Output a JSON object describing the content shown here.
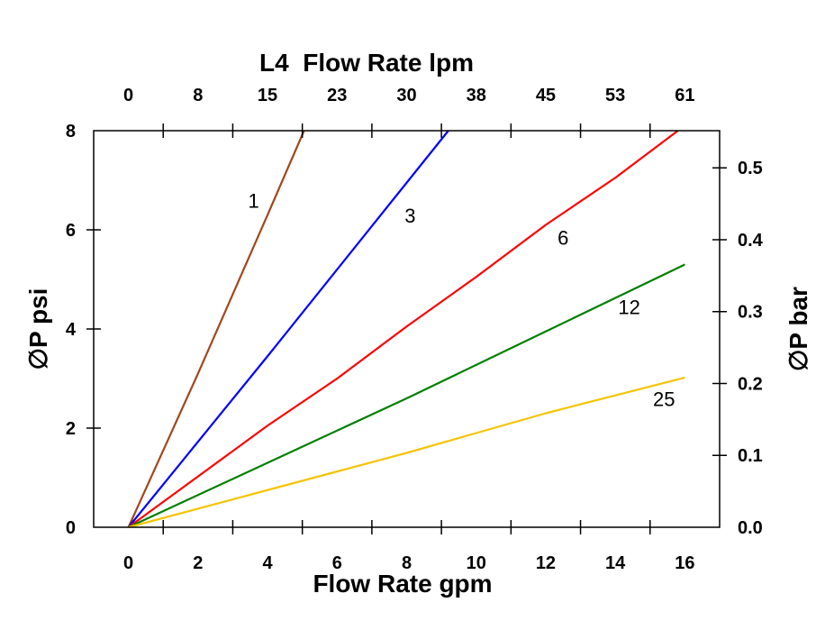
{
  "chart_data": {
    "type": "line",
    "title": "L4  Flow Rate lpm",
    "xlabel": "Flow Rate gpm",
    "ylabel": "∅P psi",
    "y2label": "∅P bar",
    "xlim": [
      -1,
      17
    ],
    "ylim": [
      0,
      8
    ],
    "y2lim": [
      0,
      0.5517
    ],
    "grid": false,
    "x_ticks": [
      0,
      2,
      4,
      6,
      8,
      10,
      12,
      14,
      16
    ],
    "x_tick_labels": [
      "0",
      "2",
      "4",
      "6",
      "8",
      "10",
      "12",
      "14",
      "16"
    ],
    "x2_tick_labels": [
      "0",
      "8",
      "15",
      "23",
      "30",
      "38",
      "45",
      "53",
      "61"
    ],
    "y_ticks": [
      0,
      2,
      4,
      6,
      8
    ],
    "y_tick_labels": [
      "0",
      "2",
      "4",
      "6",
      "8"
    ],
    "y2_ticks": [
      0.0,
      0.1,
      0.2,
      0.3,
      0.4,
      0.5
    ],
    "y2_tick_labels": [
      "0.0",
      "0.1",
      "0.2",
      "0.3",
      "0.4",
      "0.5"
    ],
    "series": [
      {
        "name": "1",
        "color": "#a0481c",
        "x": [
          0,
          2,
          4,
          5.05
        ],
        "y": [
          0,
          3.1,
          6.3,
          8
        ]
      },
      {
        "name": "3",
        "color": "#0000ff",
        "x": [
          0,
          4,
          8,
          9.2
        ],
        "y": [
          0,
          3.45,
          6.95,
          8
        ]
      },
      {
        "name": "6",
        "color": "#ff0000",
        "x": [
          0,
          4,
          6,
          8,
          10,
          12,
          14,
          15.8
        ],
        "y": [
          0,
          2.05,
          3.0,
          4.05,
          5.05,
          6.1,
          7.05,
          8
        ]
      },
      {
        "name": "12",
        "color": "#008000",
        "x": [
          0,
          4,
          8,
          12,
          16
        ],
        "y": [
          0,
          1.3,
          2.6,
          3.95,
          5.3
        ]
      },
      {
        "name": "25",
        "color": "#f5c400",
        "x": [
          0,
          4,
          8,
          10,
          12,
          16
        ],
        "y": [
          0,
          0.75,
          1.5,
          1.9,
          2.3,
          3.02
        ]
      }
    ],
    "annotations": [
      {
        "text": "1",
        "x": 3.6,
        "y": 6.45
      },
      {
        "text": "3",
        "x": 8.1,
        "y": 6.15
      },
      {
        "text": "6",
        "x": 12.5,
        "y": 5.7
      },
      {
        "text": "12",
        "x": 14.4,
        "y": 4.3
      },
      {
        "text": "25",
        "x": 15.4,
        "y": 2.45
      }
    ]
  }
}
